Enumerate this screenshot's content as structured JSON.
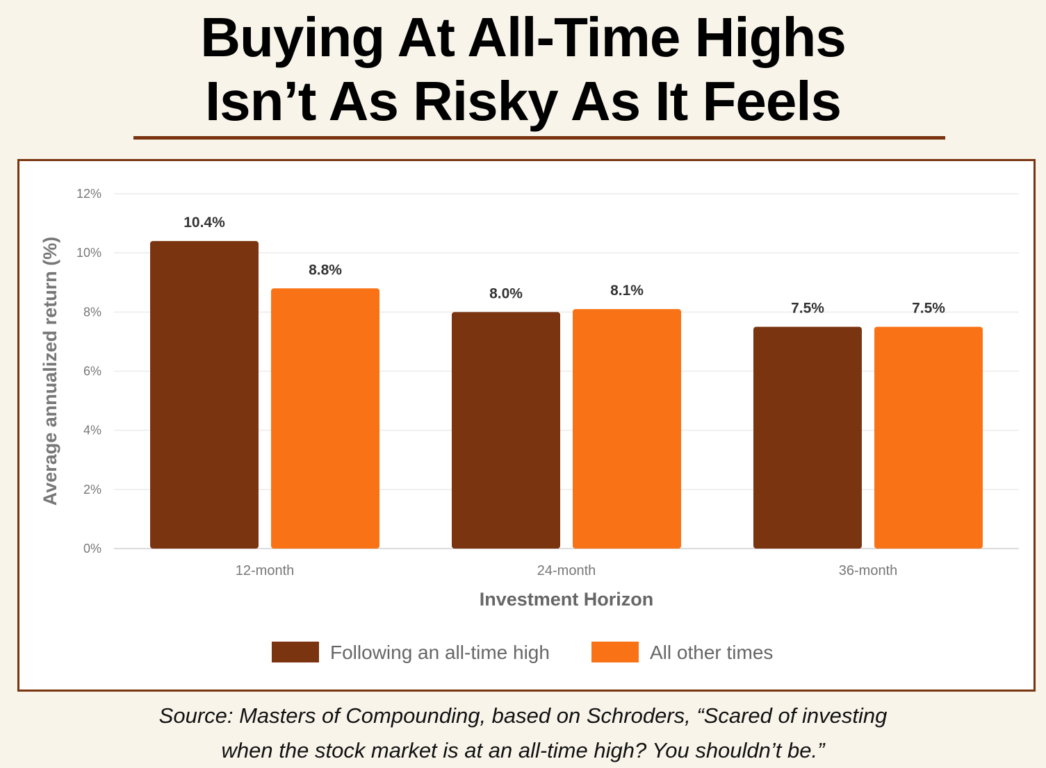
{
  "title_lines": [
    "Buying At All-Time Highs",
    "Isn’t As Risky As It Feels"
  ],
  "source_lines": [
    "Source: Masters of Compounding, based on Schroders, “Scared of investing",
    "when the stock market is at an all-time high? You shouldn’t be.”"
  ],
  "colors": {
    "accent": "#7a3410",
    "following_ath": "#7a3410",
    "other_times": "#f97316",
    "background": "#f8f4ea"
  },
  "chart_data": {
    "type": "bar",
    "xlabel": "Investment Horizon",
    "ylabel": "Average annualized return (%)",
    "ylim": [
      0,
      12
    ],
    "yticks": [
      0,
      2,
      4,
      6,
      8,
      10,
      12
    ],
    "ytick_labels": [
      "0%",
      "2%",
      "4%",
      "6%",
      "8%",
      "10%",
      "12%"
    ],
    "categories": [
      "12-month",
      "24-month",
      "36-month"
    ],
    "series": [
      {
        "name": "Following an all-time high",
        "color": "#7a3410",
        "values": [
          10.4,
          8.0,
          7.5
        ],
        "labels": [
          "10.4%",
          "8.0%",
          "7.5%"
        ]
      },
      {
        "name": "All other times",
        "color": "#f97316",
        "values": [
          8.8,
          8.1,
          7.5
        ],
        "labels": [
          "8.8%",
          "8.1%",
          "7.5%"
        ]
      }
    ],
    "grid": true,
    "legend": "bottom-center"
  }
}
